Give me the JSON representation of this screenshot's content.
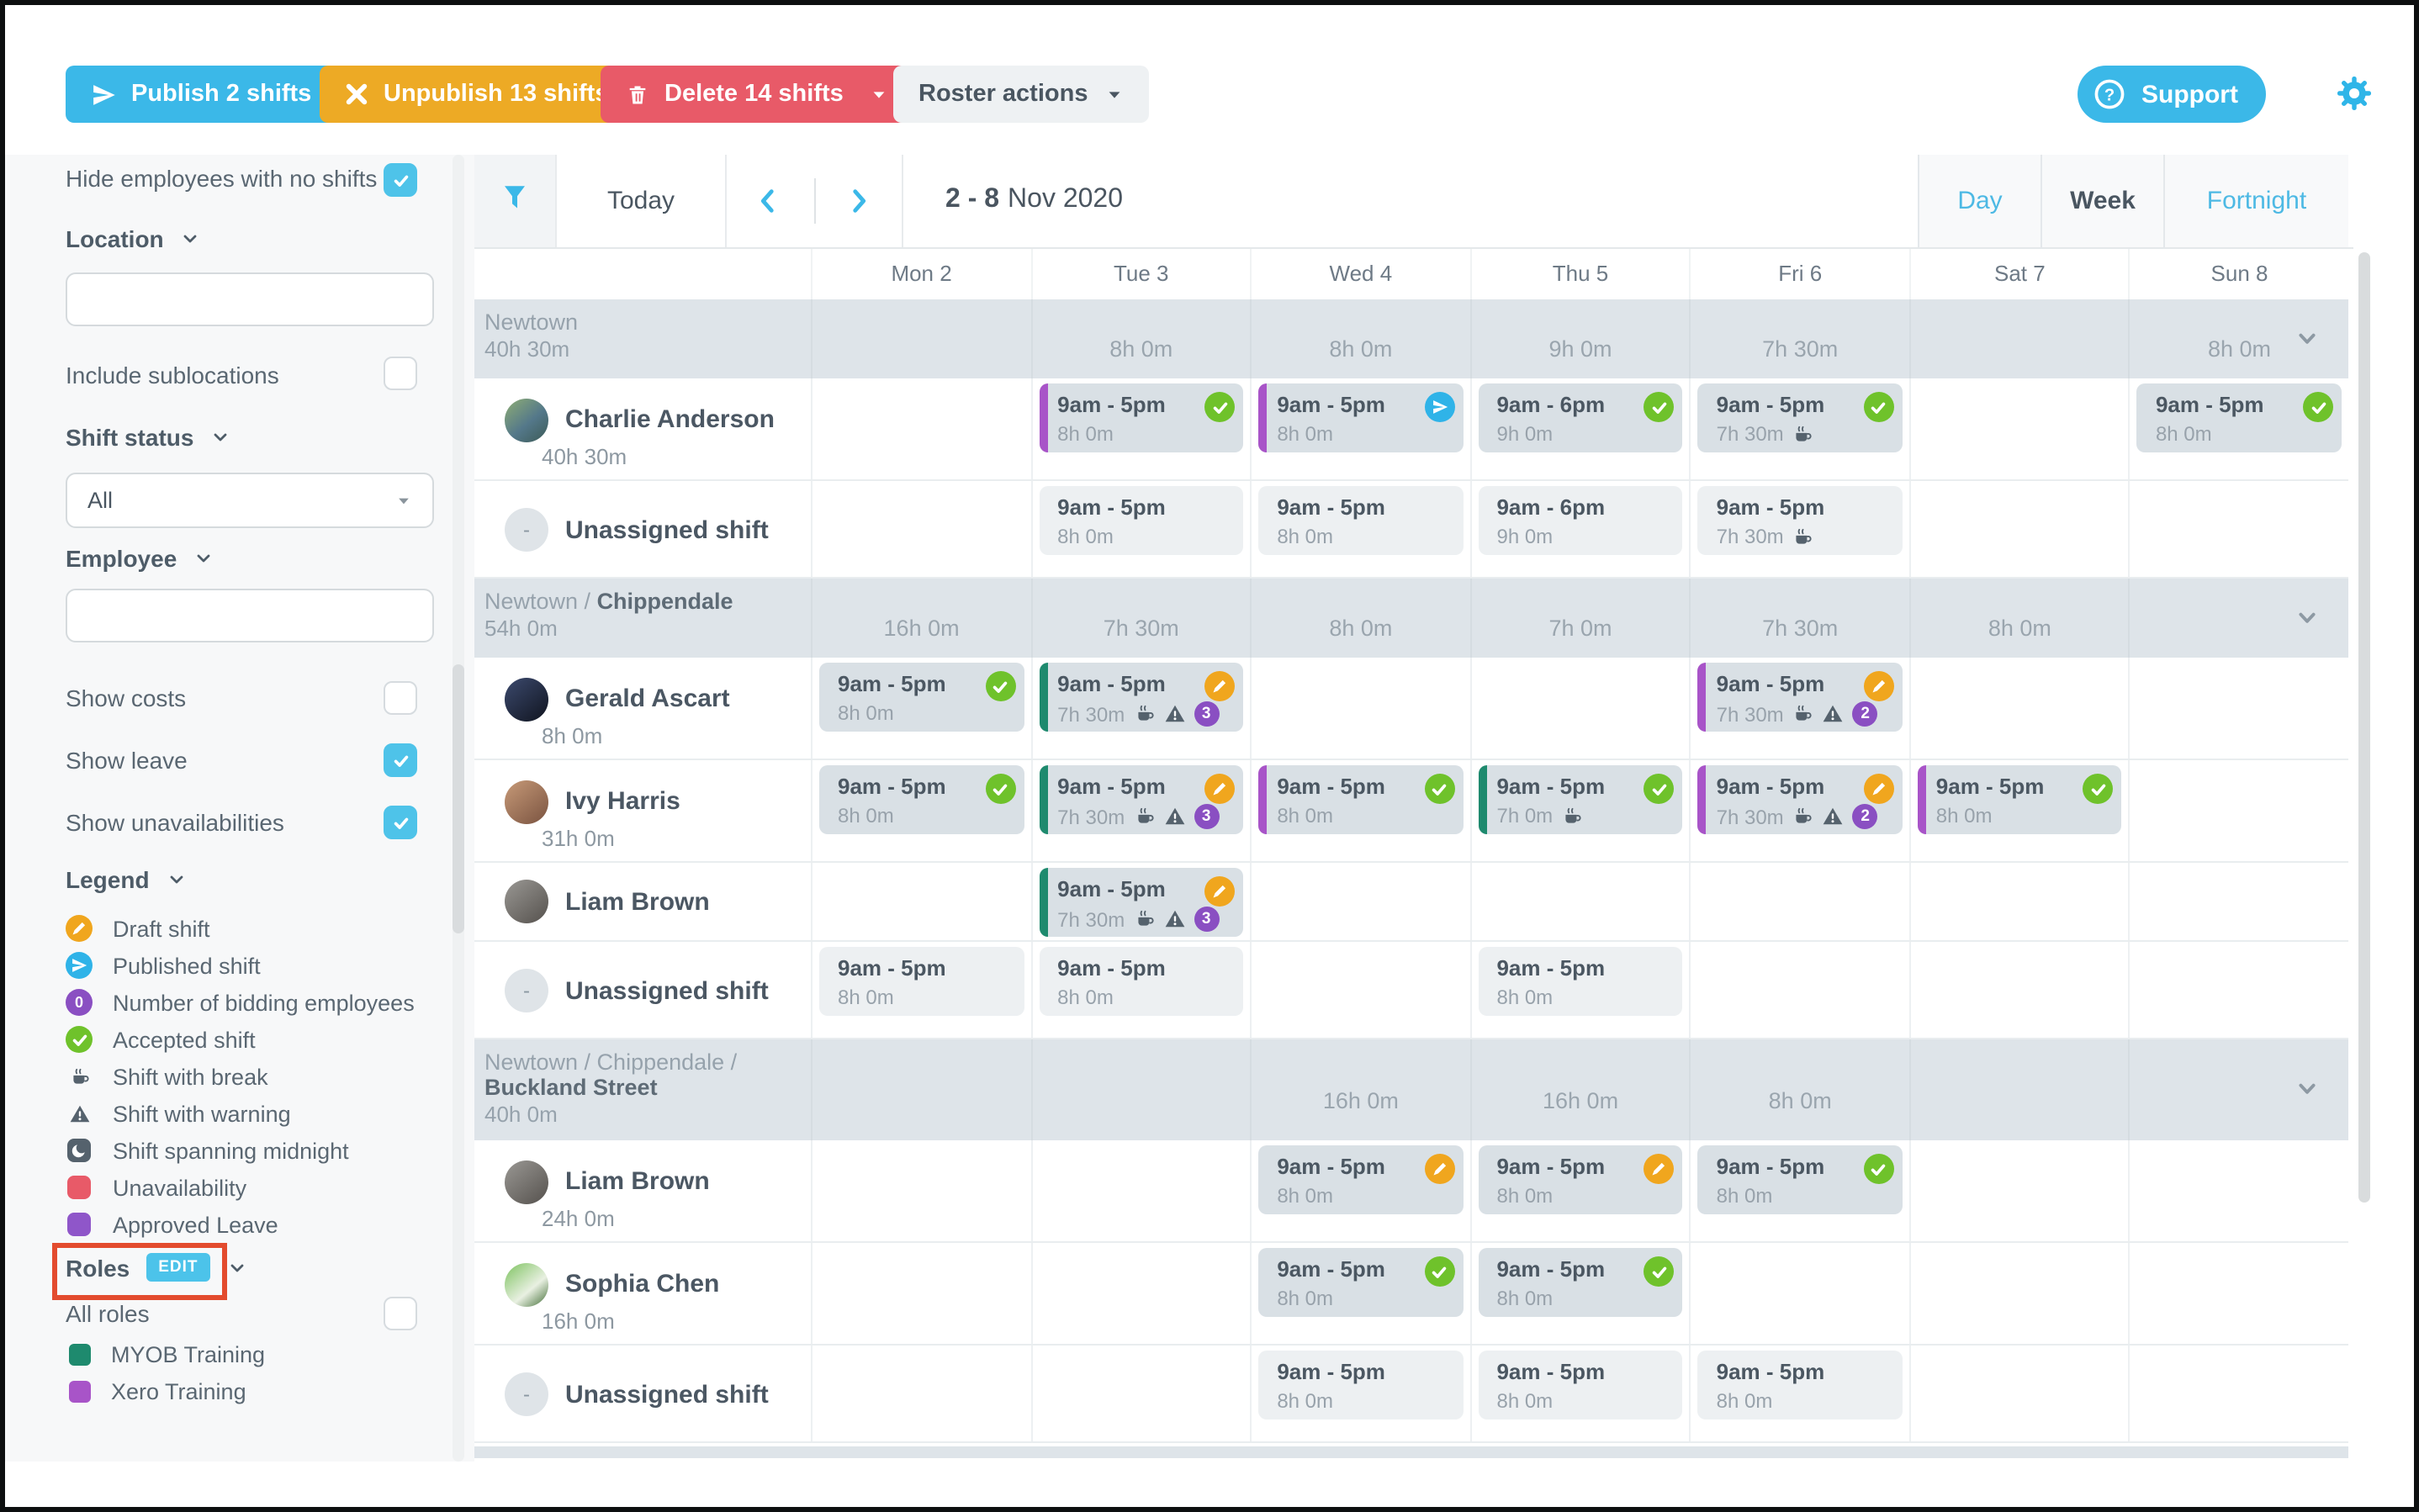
{
  "toolbar": {
    "publish": "Publish 2 shifts",
    "unpublish": "Unpublish 13 shifts",
    "delete": "Delete 14 shifts",
    "roster_actions": "Roster actions",
    "support": "Support"
  },
  "sidebar": {
    "hide_label": "Hide employees with no shifts",
    "location_label": "Location",
    "location_value": "",
    "include_sublocations_label": "Include sublocations",
    "shift_status_label": "Shift status",
    "shift_status_value": "All",
    "employee_label": "Employee",
    "employee_value": "",
    "show_costs_label": "Show costs",
    "show_leave_label": "Show leave",
    "show_unavailabilities_label": "Show unavailabilities",
    "legend_label": "Legend",
    "legend_items": [
      {
        "icon": "draft-shift-icon",
        "label": "Draft shift"
      },
      {
        "icon": "published-shift-icon",
        "label": "Published shift"
      },
      {
        "icon": "bidding-count-icon",
        "label": "Number of bidding employees",
        "count": "0"
      },
      {
        "icon": "accepted-shift-icon",
        "label": "Accepted shift"
      },
      {
        "icon": "break-icon",
        "label": "Shift with break"
      },
      {
        "icon": "warning-icon",
        "label": "Shift with warning"
      },
      {
        "icon": "midnight-icon",
        "label": "Shift spanning midnight"
      },
      {
        "icon": "unavailability-icon",
        "label": "Unavailability"
      },
      {
        "icon": "approved-leave-icon",
        "label": "Approved Leave"
      }
    ],
    "roles_label": "Roles",
    "roles_edit": "EDIT",
    "all_roles_label": "All roles",
    "roles": [
      {
        "key": "myob",
        "label": "MYOB Training",
        "color": "#1e8a6e"
      },
      {
        "key": "xero",
        "label": "Xero Training",
        "color": "#a854c8"
      }
    ],
    "checkboxes": {
      "hide": true,
      "include_sublocations": false,
      "show_costs": false,
      "show_leave": true,
      "show_unavailabilities": true,
      "all_roles": false
    }
  },
  "calendar": {
    "today": "Today",
    "range_bold": "2 - 8",
    "range_rest": "Nov 2020",
    "views": [
      {
        "label": "Day",
        "active": false
      },
      {
        "label": "Week",
        "active": true
      },
      {
        "label": "Fortnight",
        "active": false
      }
    ],
    "days": [
      "Mon 2",
      "Tue 3",
      "Wed 4",
      "Thu 5",
      "Fri 6",
      "Sat 7",
      "Sun 8"
    ],
    "groups": [
      {
        "prefix": "Newtown",
        "name": "",
        "hours": "40h 30m",
        "two_line": false,
        "totals": [
          "",
          "8h 0m",
          "8h 0m",
          "9h 0m",
          "7h 30m",
          "",
          "8h 0m"
        ],
        "rows": [
          {
            "type": "employee",
            "name": "Charlie Anderson",
            "hours": "40h 30m",
            "avatar": "charlie",
            "shifts": [
              null,
              {
                "time": "9am - 5pm",
                "dur": "8h 0m",
                "status": "accepted",
                "role": "xero"
              },
              {
                "time": "9am - 5pm",
                "dur": "8h 0m",
                "status": "published",
                "role": "xero"
              },
              {
                "time": "9am - 6pm",
                "dur": "9h 0m",
                "status": "accepted"
              },
              {
                "time": "9am - 5pm",
                "dur": "7h 30m",
                "status": "accepted",
                "brk": true
              },
              null,
              {
                "time": "9am - 5pm",
                "dur": "8h 0m",
                "status": "accepted"
              }
            ]
          },
          {
            "type": "unassigned",
            "name": "Unassigned shift",
            "shifts": [
              null,
              {
                "time": "9am - 5pm",
                "dur": "8h 0m"
              },
              {
                "time": "9am - 5pm",
                "dur": "8h 0m"
              },
              {
                "time": "9am - 6pm",
                "dur": "9h 0m"
              },
              {
                "time": "9am - 5pm",
                "dur": "7h 30m",
                "brk": true
              },
              null,
              null
            ]
          }
        ]
      },
      {
        "prefix": "Newtown / ",
        "name": "Chippendale",
        "hours": "54h 0m",
        "two_line": false,
        "totals": [
          "16h 0m",
          "7h 30m",
          "8h 0m",
          "7h 0m",
          "7h 30m",
          "8h 0m",
          ""
        ],
        "rows": [
          {
            "type": "employee",
            "name": "Gerald Ascart",
            "hours": "8h 0m",
            "avatar": "gerald",
            "shifts": [
              {
                "time": "9am - 5pm",
                "dur": "8h 0m",
                "status": "accepted"
              },
              {
                "time": "9am - 5pm",
                "dur": "7h 30m",
                "status": "draft",
                "role": "myob",
                "brk": true,
                "warn": true,
                "bids": "3"
              },
              null,
              null,
              {
                "time": "9am - 5pm",
                "dur": "7h 30m",
                "status": "draft",
                "role": "xero",
                "brk": true,
                "warn": true,
                "bids": "2"
              },
              null,
              null
            ]
          },
          {
            "type": "employee",
            "name": "Ivy Harris",
            "hours": "31h 0m",
            "avatar": "ivy",
            "shifts": [
              {
                "time": "9am - 5pm",
                "dur": "8h 0m",
                "status": "accepted"
              },
              {
                "time": "9am - 5pm",
                "dur": "7h 30m",
                "status": "draft",
                "role": "myob",
                "brk": true,
                "warn": true,
                "bids": "3"
              },
              {
                "time": "9am - 5pm",
                "dur": "8h 0m",
                "status": "accepted",
                "role": "xero"
              },
              {
                "time": "9am - 5pm",
                "dur": "7h 0m",
                "status": "accepted",
                "role": "myob",
                "brk": true
              },
              {
                "time": "9am - 5pm",
                "dur": "7h 30m",
                "status": "draft",
                "role": "xero",
                "brk": true,
                "warn": true,
                "bids": "2"
              },
              {
                "time": "9am - 5pm",
                "dur": "8h 0m",
                "status": "accepted",
                "role": "xero"
              },
              null
            ]
          },
          {
            "type": "employee",
            "name": "Liam Brown",
            "hours": "",
            "avatar": "liam",
            "shifts": [
              null,
              {
                "time": "9am - 5pm",
                "dur": "7h 30m",
                "status": "draft",
                "role": "myob",
                "brk": true,
                "warn": true,
                "bids": "3"
              },
              null,
              null,
              null,
              null,
              null
            ]
          },
          {
            "type": "unassigned",
            "name": "Unassigned shift",
            "shifts": [
              {
                "time": "9am - 5pm",
                "dur": "8h 0m"
              },
              {
                "time": "9am - 5pm",
                "dur": "8h 0m"
              },
              null,
              {
                "time": "9am - 5pm",
                "dur": "8h 0m"
              },
              null,
              null,
              null
            ]
          }
        ]
      },
      {
        "prefix": "Newtown / Chippendale / ",
        "name": "Buckland Street",
        "hours": "40h 0m",
        "two_line": true,
        "totals": [
          "",
          "",
          "16h 0m",
          "16h 0m",
          "8h 0m",
          "",
          ""
        ],
        "rows": [
          {
            "type": "employee",
            "name": "Liam Brown",
            "hours": "24h 0m",
            "avatar": "liam",
            "shifts": [
              null,
              null,
              {
                "time": "9am - 5pm",
                "dur": "8h 0m",
                "status": "draft"
              },
              {
                "time": "9am - 5pm",
                "dur": "8h 0m",
                "status": "draft"
              },
              {
                "time": "9am - 5pm",
                "dur": "8h 0m",
                "status": "accepted"
              },
              null,
              null
            ]
          },
          {
            "type": "employee",
            "name": "Sophia Chen",
            "hours": "16h 0m",
            "avatar": "sophia",
            "shifts": [
              null,
              null,
              {
                "time": "9am - 5pm",
                "dur": "8h 0m",
                "status": "accepted"
              },
              {
                "time": "9am - 5pm",
                "dur": "8h 0m",
                "status": "accepted"
              },
              null,
              null,
              null
            ]
          },
          {
            "type": "unassigned",
            "name": "Unassigned shift",
            "shifts": [
              null,
              null,
              {
                "time": "9am - 5pm",
                "dur": "8h 0m"
              },
              {
                "time": "9am - 5pm",
                "dur": "8h 0m"
              },
              {
                "time": "9am - 5pm",
                "dur": "8h 0m"
              },
              null,
              null
            ]
          }
        ]
      }
    ]
  },
  "colors": {
    "accent_blue": "#3bb8e8",
    "orange": "#edaa25",
    "red": "#e85a68",
    "draft": "#f0a61e",
    "published": "#2fb3e8",
    "accepted": "#6fc22b",
    "bidding": "#8a4fc2",
    "role_myob": "#1e8a6e",
    "role_xero": "#a854c8",
    "highlight_box": "#e34b2e",
    "group_row_bg": "#dee4e9",
    "assigned_card_bg": "#d9e0e5",
    "unassigned_card_bg": "#edf0f2"
  }
}
